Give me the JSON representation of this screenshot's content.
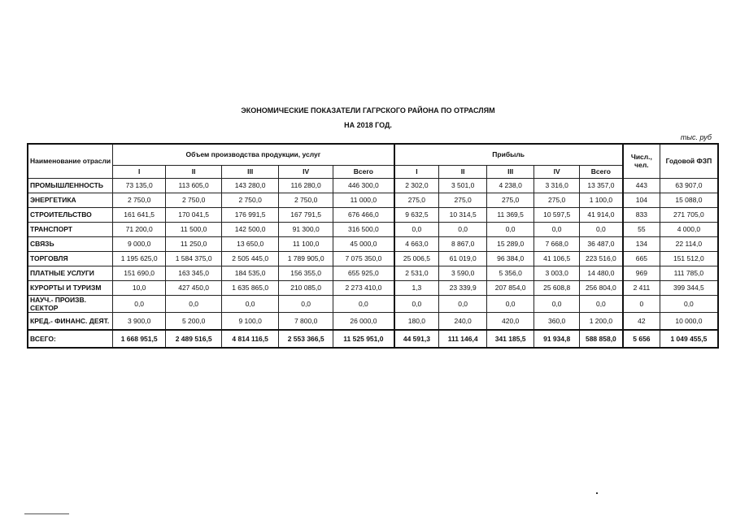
{
  "title": "ЭКОНОМИЧЕСКИЕ ПОКАЗАТЕЛИ  ГАГРСКОГО РАЙОНА ПО ОТРАСЛЯМ",
  "subtitle": "НА 2018 ГОД.",
  "unit": "тыс. руб",
  "headers": {
    "name": "Наименование отрасли",
    "production": "Объем производства продукции, услуг",
    "profit": "Прибыль",
    "staff": "Числ., чел.",
    "payroll": "Годовой ФЗП",
    "quarters": [
      "I",
      "II",
      "III",
      "IV",
      "Всего"
    ]
  },
  "rows": [
    {
      "name": "ПРОМЫШЛЕННОСТЬ",
      "cells": [
        "73 135,0",
        "113 605,0",
        "143 280,0",
        "116 280,0",
        "446 300,0",
        "2 302,0",
        "3 501,0",
        "4 238,0",
        "3 316,0",
        "13 357,0",
        "443",
        "63 907,0"
      ]
    },
    {
      "name": "ЭНЕРГЕТИКА",
      "cells": [
        "2 750,0",
        "2 750,0",
        "2 750,0",
        "2 750,0",
        "11 000,0",
        "275,0",
        "275,0",
        "275,0",
        "275,0",
        "1 100,0",
        "104",
        "15 088,0"
      ]
    },
    {
      "name": "СТРОИТЕЛЬСТВО",
      "cells": [
        "161 641,5",
        "170 041,5",
        "176 991,5",
        "167 791,5",
        "676 466,0",
        "9 632,5",
        "10 314,5",
        "11 369,5",
        "10 597,5",
        "41 914,0",
        "833",
        "271 705,0"
      ]
    },
    {
      "name": "ТРАНСПОРТ",
      "cells": [
        "71 200,0",
        "11 500,0",
        "142 500,0",
        "91 300,0",
        "316 500,0",
        "0,0",
        "0,0",
        "0,0",
        "0,0",
        "0,0",
        "55",
        "4 000,0"
      ]
    },
    {
      "name": "СВЯЗЬ",
      "cells": [
        "9 000,0",
        "11 250,0",
        "13 650,0",
        "11 100,0",
        "45 000,0",
        "4 663,0",
        "8 867,0",
        "15 289,0",
        "7 668,0",
        "36 487,0",
        "134",
        "22 114,0"
      ]
    },
    {
      "name": "ТОРГОВЛЯ",
      "cells": [
        "1 195 625,0",
        "1 584 375,0",
        "2 505 445,0",
        "1 789 905,0",
        "7 075 350,0",
        "25 006,5",
        "61 019,0",
        "96 384,0",
        "41 106,5",
        "223 516,0",
        "665",
        "151 512,0"
      ]
    },
    {
      "name": "ПЛАТНЫЕ  УСЛУГИ",
      "cells": [
        "151 690,0",
        "163 345,0",
        "184 535,0",
        "156 355,0",
        "655 925,0",
        "2 531,0",
        "3 590,0",
        "5 356,0",
        "3 003,0",
        "14 480,0",
        "969",
        "111 785,0"
      ]
    },
    {
      "name": "КУРОРТЫ И ТУРИЗМ",
      "cells": [
        "10,0",
        "427 450,0",
        "1 635 865,0",
        "210 085,0",
        "2 273 410,0",
        "1,3",
        "23 339,9",
        "207 854,0",
        "25 608,8",
        "256 804,0",
        "2 411",
        "399 344,5"
      ]
    },
    {
      "name": "НАУЧ.- ПРОИЗВ. СЕКТОР",
      "cells": [
        "0,0",
        "0,0",
        "0,0",
        "0,0",
        "0,0",
        "0,0",
        "0,0",
        "0,0",
        "0,0",
        "0,0",
        "0",
        "0,0"
      ]
    },
    {
      "name": "КРЕД.- ФИНАНС. ДЕЯТ.",
      "cells": [
        "3 900,0",
        "5 200,0",
        "9 100,0",
        "7 800,0",
        "26 000,0",
        "180,0",
        "240,0",
        "420,0",
        "360,0",
        "1 200,0",
        "42",
        "10 000,0"
      ]
    }
  ],
  "total": {
    "name": "ВСЕГО:",
    "cells": [
      "1 668 951,5",
      "2 489 516,5",
      "4 814 116,5",
      "2 553 366,5",
      "11 525 951,0",
      "44 591,3",
      "111 146,4",
      "341 185,5",
      "91 934,8",
      "588 858,0",
      "5 656",
      "1 049 455,5"
    ]
  }
}
